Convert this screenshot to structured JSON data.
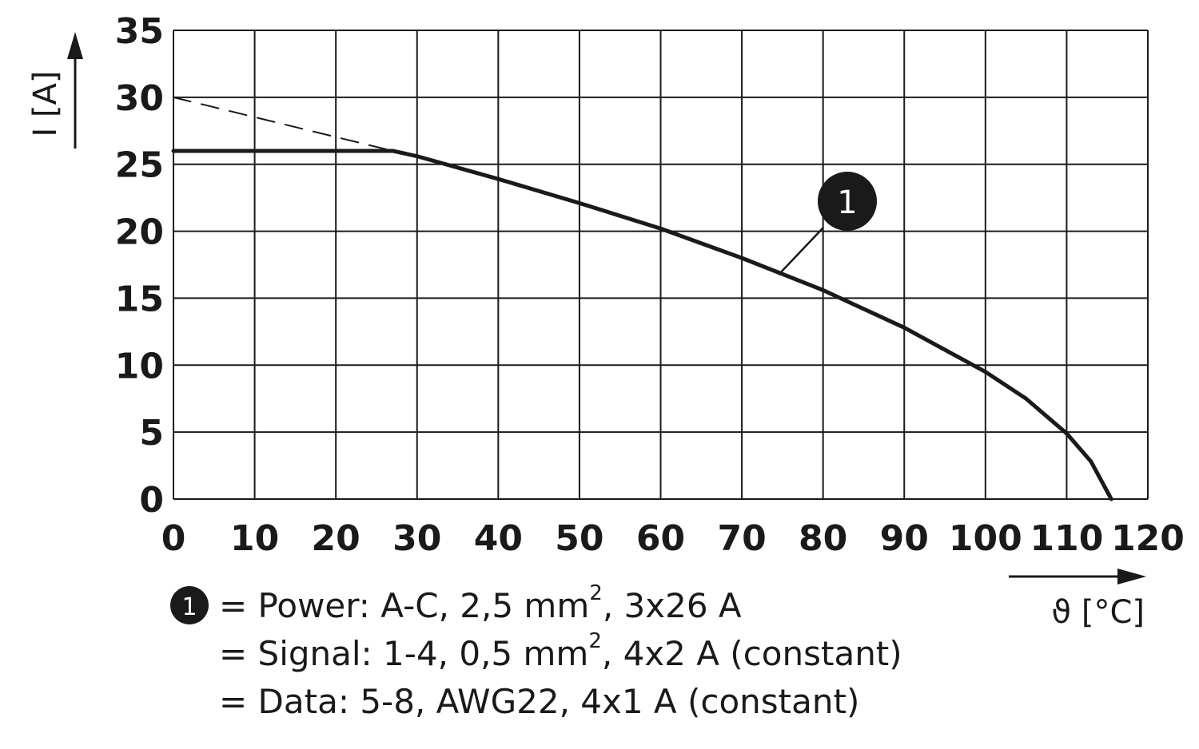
{
  "chart_data": {
    "type": "line",
    "xlabel": "ϑ [°C]",
    "ylabel": "I [A]",
    "xlim": [
      0,
      120
    ],
    "ylim": [
      0,
      35
    ],
    "x_ticks": [
      "0",
      "10",
      "20",
      "30",
      "40",
      "50",
      "60",
      "70",
      "80",
      "90",
      "100",
      "110",
      "120"
    ],
    "y_ticks": [
      "0",
      "5",
      "10",
      "15",
      "20",
      "25",
      "30",
      "35"
    ],
    "grid": true,
    "series": [
      {
        "marker": "1",
        "style": "solid",
        "x": [
          0,
          27,
          30,
          40,
          50,
          60,
          70,
          80,
          90,
          100,
          105,
          110,
          113,
          115.5
        ],
        "y": [
          26,
          26,
          25.6,
          23.9,
          22.1,
          20.2,
          18,
          15.6,
          12.8,
          9.5,
          7.5,
          4.9,
          2.8,
          0
        ]
      },
      {
        "style": "dashed",
        "x": [
          0,
          27
        ],
        "y": [
          30,
          26
        ]
      }
    ],
    "marker_label": "1",
    "marker_color": "#1a1a1a"
  },
  "legend": {
    "marker": "1",
    "lines": [
      {
        "prefix": "= Power: A-C, 2,5 mm",
        "sup": "2",
        "suffix": ", 3x26 A"
      },
      {
        "prefix": "= Signal: 1-4, 0,5 mm",
        "sup": "2",
        "suffix": ", 4x2 A (constant)"
      },
      {
        "prefix": "= Data: 5-8, AWG22, 4x1 A (constant)",
        "sup": "",
        "suffix": ""
      }
    ]
  }
}
